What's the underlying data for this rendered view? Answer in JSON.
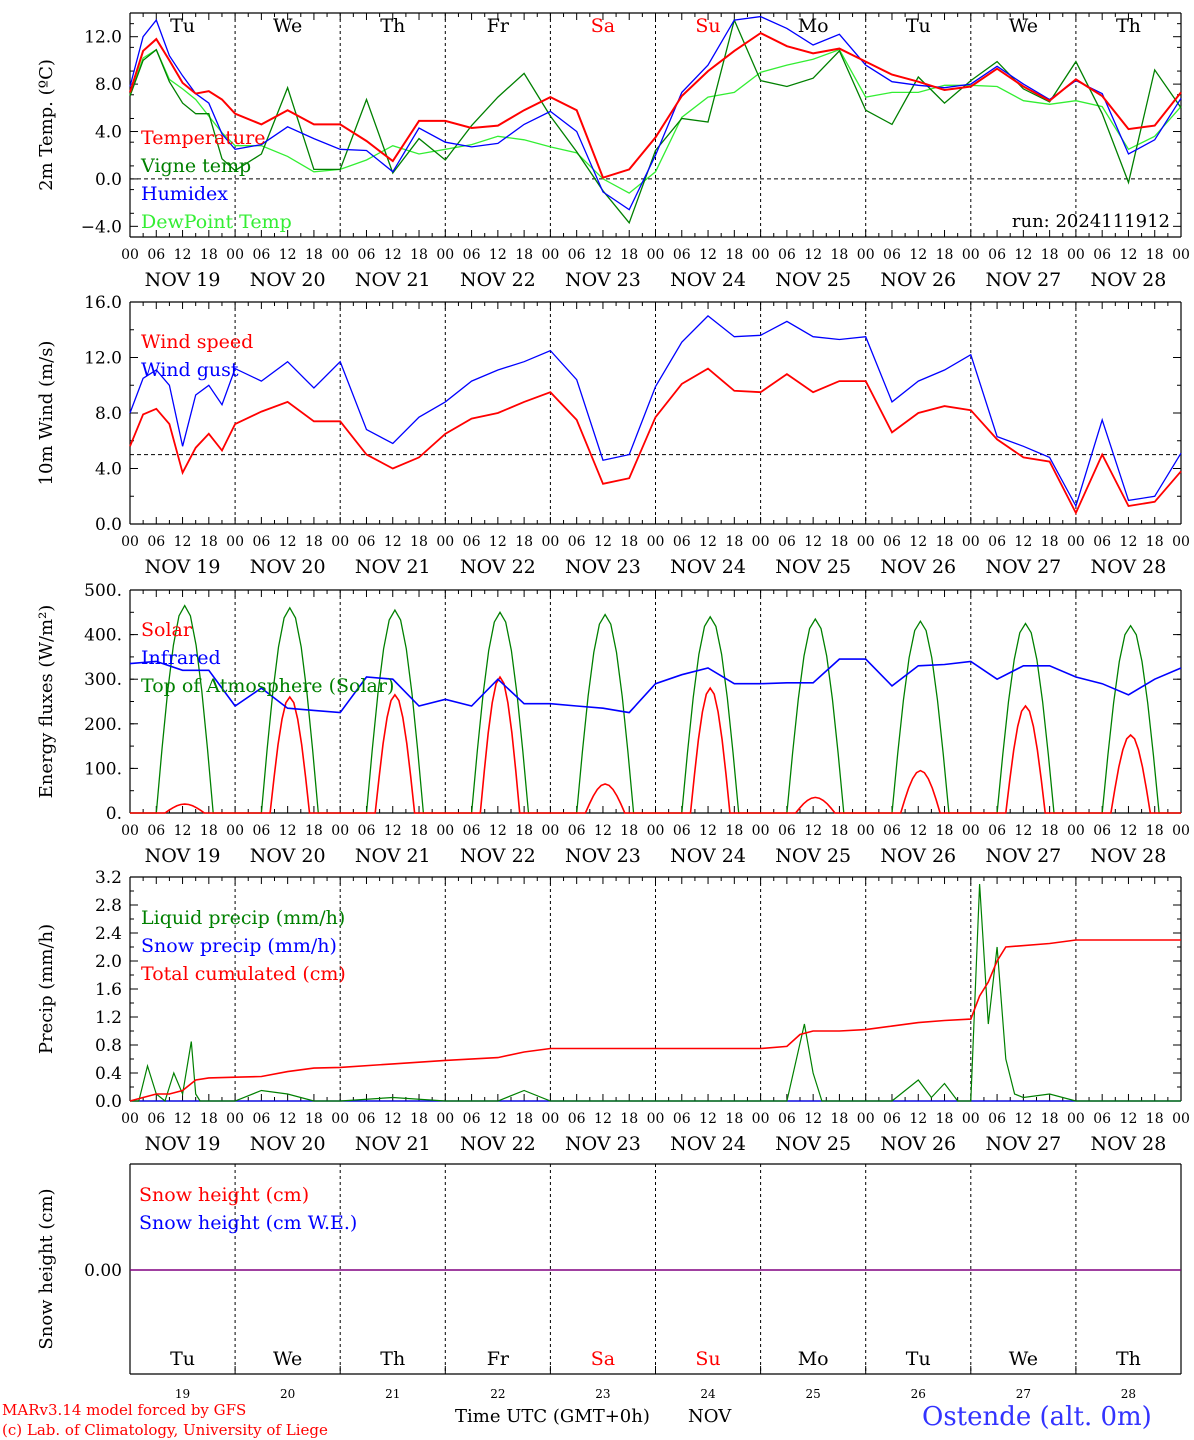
{
  "run_label": "run: 2024111912",
  "days_top": [
    "Tu",
    "We",
    "Th",
    "Fr",
    "Sa",
    "Su",
    "Mo",
    "Tu",
    "We",
    "Th"
  ],
  "days_bottom": [
    "Tu",
    "We",
    "Th",
    "Fr",
    "Sa",
    "Su",
    "Mo",
    "Tu",
    "We",
    "Th"
  ],
  "weekend_color": "#ff0000",
  "dates": [
    "NOV 19",
    "NOV 20",
    "NOV 21",
    "NOV 22",
    "NOV 23",
    "NOV 24",
    "NOV 25",
    "NOV 26",
    "NOV 27",
    "NOV 28"
  ],
  "day_numbers": [
    "19",
    "20",
    "21",
    "22",
    "23",
    "24",
    "25",
    "26",
    "27",
    "28"
  ],
  "hour_ticks": [
    "00",
    "06",
    "12",
    "18"
  ],
  "final_hour": "00",
  "xlabel": "Time UTC (GMT+0h)",
  "month": "NOV",
  "footer": {
    "model": "MARv3.14 model forced by GFS",
    "credit": "(c) Lab. of Climatology, University of Liege",
    "station": "Ostende (alt. 0m)"
  },
  "chart_data": [
    {
      "type": "line",
      "ylabel": "2m Temp. (ºC)",
      "yticks": [
        "12.0",
        "8.0",
        "4.0",
        "0.0",
        "−4.0"
      ],
      "ylim": [
        -4.9,
        14.0
      ],
      "reference_line": 0,
      "x_unit": "hours since NOV 19 00 UTC",
      "series": [
        {
          "name": "Temperature",
          "color": "#ff0000",
          "x": [
            0,
            3,
            6,
            9,
            12,
            15,
            18,
            21,
            24,
            30,
            36,
            42,
            48,
            54,
            60,
            66,
            72,
            78,
            84,
            90,
            96,
            102,
            108,
            114,
            120,
            126,
            132,
            138,
            144,
            150,
            156,
            162,
            168,
            174,
            180,
            186,
            192,
            198,
            204,
            210,
            216,
            222,
            228,
            234,
            240
          ],
          "y": [
            7.3,
            10.8,
            11.8,
            10.0,
            8.1,
            7.2,
            7.4,
            6.7,
            5.5,
            4.6,
            5.8,
            4.6,
            4.6,
            3.2,
            1.5,
            4.9,
            4.9,
            4.3,
            4.5,
            5.8,
            6.9,
            5.8,
            0.1,
            0.8,
            3.5,
            7.0,
            9.1,
            10.8,
            12.3,
            11.2,
            10.6,
            11.0,
            9.9,
            8.8,
            8.2,
            7.5,
            7.8,
            9.3,
            7.8,
            6.6,
            8.4,
            7.0,
            4.2,
            4.5,
            7.3
          ]
        },
        {
          "name": "Vigne temp",
          "color": "#008000",
          "x": [
            0,
            3,
            6,
            9,
            12,
            15,
            18,
            21,
            24,
            30,
            36,
            42,
            48,
            54,
            60,
            66,
            72,
            78,
            84,
            90,
            96,
            102,
            108,
            114,
            120,
            126,
            132,
            138,
            144,
            150,
            156,
            162,
            168,
            174,
            180,
            186,
            192,
            198,
            204,
            210,
            216,
            222,
            228,
            234,
            240
          ],
          "y": [
            7.0,
            10.0,
            10.9,
            8.2,
            6.4,
            5.5,
            5.5,
            1.7,
            0.7,
            2.1,
            7.7,
            0.8,
            0.8,
            6.7,
            0.5,
            3.4,
            1.6,
            4.5,
            6.9,
            8.9,
            5.3,
            2.3,
            -1.0,
            -3.7,
            2.4,
            5.1,
            4.8,
            13.4,
            8.3,
            7.8,
            8.5,
            10.8,
            5.8,
            4.6,
            8.6,
            6.4,
            8.3,
            9.9,
            7.6,
            6.5,
            9.9,
            5.5,
            -0.3,
            9.2,
            6.0
          ]
        },
        {
          "name": "Humidex",
          "color": "#0000ff",
          "x": [
            0,
            3,
            6,
            9,
            12,
            15,
            18,
            21,
            24,
            30,
            36,
            42,
            48,
            54,
            60,
            66,
            72,
            78,
            84,
            90,
            96,
            102,
            108,
            114,
            120,
            126,
            132,
            138,
            144,
            150,
            156,
            162,
            168,
            174,
            180,
            186,
            192,
            198,
            204,
            210,
            216,
            222,
            228,
            234,
            240
          ],
          "y": [
            7.8,
            12.0,
            13.4,
            10.4,
            8.7,
            7.2,
            6.4,
            3.8,
            2.5,
            2.9,
            4.4,
            3.4,
            2.5,
            2.4,
            0.6,
            4.3,
            3.1,
            2.7,
            3.0,
            4.6,
            5.7,
            4.0,
            -1.1,
            -2.6,
            2.0,
            7.3,
            9.6,
            13.4,
            13.7,
            12.7,
            11.3,
            12.2,
            9.6,
            8.2,
            7.9,
            7.7,
            8.0,
            9.5,
            8.0,
            6.7,
            8.3,
            7.2,
            2.1,
            3.3,
            6.8
          ]
        },
        {
          "name": "DewPoint Temp",
          "color": "#33ee33",
          "x": [
            0,
            3,
            6,
            9,
            12,
            15,
            18,
            21,
            24,
            30,
            36,
            42,
            48,
            54,
            60,
            66,
            72,
            78,
            84,
            90,
            96,
            102,
            108,
            114,
            120,
            126,
            132,
            138,
            144,
            150,
            156,
            162,
            168,
            174,
            180,
            186,
            192,
            198,
            204,
            210,
            216,
            222,
            228,
            234,
            240
          ],
          "y": [
            7.1,
            10.2,
            10.9,
            8.4,
            7.6,
            6.7,
            5.3,
            3.9,
            2.8,
            2.8,
            1.9,
            0.6,
            0.8,
            1.6,
            2.8,
            2.1,
            2.5,
            2.9,
            3.6,
            3.3,
            2.7,
            2.2,
            0.0,
            -1.2,
            0.6,
            5.2,
            6.9,
            7.3,
            9.0,
            9.6,
            10.1,
            10.9,
            6.9,
            7.3,
            7.3,
            7.9,
            7.9,
            7.8,
            6.6,
            6.3,
            6.6,
            6.1,
            2.5,
            3.6,
            6.1
          ]
        }
      ]
    },
    {
      "type": "line",
      "ylabel": "10m Wind (m/s)",
      "yticks": [
        "16.0",
        "12.0",
        "8.0",
        "4.0",
        "0.0"
      ],
      "ylim": [
        0.0,
        16.0
      ],
      "reference_line": 5.0,
      "x_unit": "hours since NOV 19 00 UTC",
      "series": [
        {
          "name": "Wind speed",
          "color": "#ff0000",
          "x": [
            0,
            3,
            6,
            9,
            12,
            15,
            18,
            21,
            24,
            30,
            36,
            42,
            48,
            54,
            60,
            66,
            72,
            78,
            84,
            90,
            96,
            102,
            108,
            114,
            120,
            126,
            132,
            138,
            144,
            150,
            156,
            162,
            168,
            174,
            180,
            186,
            192,
            198,
            204,
            210,
            216,
            222,
            228,
            234,
            240
          ],
          "y": [
            5.6,
            7.9,
            8.3,
            7.2,
            3.7,
            5.5,
            6.5,
            5.3,
            7.2,
            8.1,
            8.8,
            7.4,
            7.4,
            5.0,
            4.0,
            4.8,
            6.5,
            7.6,
            8.0,
            8.8,
            9.5,
            7.5,
            2.9,
            3.3,
            7.7,
            10.1,
            11.2,
            9.6,
            9.5,
            10.8,
            9.5,
            10.3,
            10.3,
            6.6,
            8.0,
            8.5,
            8.2,
            6.1,
            4.8,
            4.5,
            0.8,
            5.0,
            1.3,
            1.6,
            3.8
          ]
        },
        {
          "name": "Wind gust",
          "color": "#0000ff",
          "x": [
            0,
            3,
            6,
            9,
            12,
            15,
            18,
            21,
            24,
            30,
            36,
            42,
            48,
            54,
            60,
            66,
            72,
            78,
            84,
            90,
            96,
            102,
            108,
            114,
            120,
            126,
            132,
            138,
            144,
            150,
            156,
            162,
            168,
            174,
            180,
            186,
            192,
            198,
            204,
            210,
            216,
            222,
            228,
            234,
            240
          ],
          "y": [
            8.0,
            10.5,
            11.1,
            10.0,
            5.6,
            9.3,
            10.0,
            8.6,
            11.2,
            10.3,
            11.7,
            9.8,
            11.7,
            6.8,
            5.8,
            7.7,
            8.8,
            10.3,
            11.1,
            11.7,
            12.5,
            10.4,
            4.6,
            5.0,
            9.9,
            13.1,
            15.0,
            13.5,
            13.6,
            14.6,
            13.5,
            13.3,
            13.5,
            8.8,
            10.3,
            11.1,
            12.2,
            6.3,
            5.6,
            4.8,
            1.3,
            7.5,
            1.7,
            2.0,
            5.1
          ]
        }
      ]
    },
    {
      "type": "line",
      "ylabel": "Energy fluxes (W/m²)",
      "yticks": [
        "500.",
        "400.",
        "300.",
        "200.",
        "100.",
        "0."
      ],
      "ylim": [
        0,
        500
      ],
      "x_unit": "hours since NOV 19 00 UTC",
      "series": [
        {
          "name": "Solar",
          "color": "#ff0000",
          "peaks": [
            {
              "center": 12.5,
              "width": 9,
              "value": 20
            },
            {
              "center": 36.5,
              "width": 9,
              "value": 260
            },
            {
              "center": 60.5,
              "width": 9,
              "value": 265
            },
            {
              "center": 84.5,
              "width": 9,
              "value": 305
            },
            {
              "center": 108.5,
              "width": 9,
              "value": 65
            },
            {
              "center": 132.5,
              "width": 9,
              "value": 280
            },
            {
              "center": 156.5,
              "width": 9,
              "value": 35
            },
            {
              "center": 180.5,
              "width": 9,
              "value": 95
            },
            {
              "center": 204.5,
              "width": 9,
              "value": 240
            },
            {
              "center": 228.5,
              "width": 9,
              "value": 175
            }
          ]
        },
        {
          "name": "Infrared",
          "color": "#0000ff",
          "x": [
            0,
            6,
            12,
            18,
            24,
            30,
            36,
            42,
            48,
            54,
            60,
            66,
            72,
            78,
            84,
            90,
            96,
            102,
            108,
            114,
            120,
            126,
            132,
            138,
            144,
            150,
            156,
            162,
            168,
            174,
            180,
            186,
            192,
            198,
            204,
            210,
            216,
            222,
            228,
            234,
            240
          ],
          "y": [
            335,
            340,
            320,
            320,
            240,
            280,
            235,
            230,
            225,
            305,
            300,
            240,
            255,
            240,
            300,
            245,
            245,
            240,
            235,
            225,
            290,
            310,
            325,
            290,
            290,
            292,
            292,
            345,
            345,
            285,
            330,
            333,
            340,
            300,
            330,
            330,
            305,
            290,
            265,
            300,
            325
          ]
        },
        {
          "name": "Top of Atmosphere (Solar)",
          "color": "#008000",
          "peaks": [
            {
              "center": 12.5,
              "width": 13,
              "value": 465
            },
            {
              "center": 36.5,
              "width": 13,
              "value": 460
            },
            {
              "center": 60.5,
              "width": 13,
              "value": 455
            },
            {
              "center": 84.5,
              "width": 13,
              "value": 450
            },
            {
              "center": 108.5,
              "width": 13,
              "value": 445
            },
            {
              "center": 132.5,
              "width": 13,
              "value": 440
            },
            {
              "center": 156.5,
              "width": 13,
              "value": 435
            },
            {
              "center": 180.5,
              "width": 13,
              "value": 430
            },
            {
              "center": 204.5,
              "width": 13,
              "value": 425
            },
            {
              "center": 228.5,
              "width": 13,
              "value": 420
            }
          ]
        }
      ]
    },
    {
      "type": "line",
      "ylabel": "Precip (mm/h)",
      "yticks": [
        "3.2",
        "2.8",
        "2.4",
        "2.0",
        "1.6",
        "1.2",
        "0.8",
        "0.4",
        "0.0"
      ],
      "ylim": [
        0.0,
        3.2
      ],
      "x_unit": "hours since NOV 19 00 UTC",
      "series": [
        {
          "name": "Liquid precip (mm/h)",
          "color": "#008000",
          "x": [
            0,
            2,
            4,
            6,
            8,
            10,
            12,
            14,
            15,
            16,
            18,
            24,
            30,
            36,
            42,
            48,
            60,
            72,
            84,
            90,
            96,
            102,
            150,
            154,
            156,
            158,
            162,
            174,
            180,
            183,
            186,
            189,
            192,
            194,
            196,
            198,
            200,
            202,
            204,
            210,
            216,
            222,
            240
          ],
          "y": [
            0,
            0,
            0.5,
            0.1,
            0,
            0.4,
            0.1,
            0.85,
            0.1,
            0,
            0,
            0,
            0.15,
            0.1,
            0,
            0,
            0.05,
            0,
            0,
            0.15,
            0,
            0,
            0,
            1.1,
            0.4,
            0,
            0,
            0,
            0.3,
            0.05,
            0.25,
            0,
            0,
            3.1,
            1.1,
            2.2,
            0.6,
            0.1,
            0.05,
            0.1,
            0,
            0,
            0
          ]
        },
        {
          "name": "Snow precip (mm/h)",
          "color": "#0000ff",
          "x": [
            0,
            240
          ],
          "y": [
            0,
            0
          ]
        },
        {
          "name": "Total cumulated (cm)",
          "color": "#ff0000",
          "x": [
            0,
            3,
            6,
            9,
            12,
            15,
            18,
            24,
            30,
            36,
            42,
            48,
            60,
            72,
            84,
            90,
            96,
            102,
            108,
            120,
            144,
            150,
            153,
            156,
            162,
            168,
            174,
            180,
            186,
            192,
            194,
            196,
            198,
            200,
            210,
            216,
            222,
            240
          ],
          "y": [
            0,
            0.05,
            0.1,
            0.1,
            0.15,
            0.3,
            0.33,
            0.34,
            0.35,
            0.42,
            0.47,
            0.48,
            0.53,
            0.58,
            0.62,
            0.7,
            0.75,
            0.75,
            0.75,
            0.75,
            0.75,
            0.78,
            0.95,
            1.0,
            1.0,
            1.02,
            1.07,
            1.12,
            1.15,
            1.17,
            1.5,
            1.7,
            2.0,
            2.2,
            2.25,
            2.3,
            2.3,
            2.3
          ]
        }
      ]
    },
    {
      "type": "line",
      "ylabel": "Snow height (cm)",
      "ytick_label": "0.00",
      "x_unit": "hours since NOV 19 00 UTC",
      "series": [
        {
          "name": "Snow height (cm)",
          "color": "#ff0000",
          "x": [
            0,
            240
          ],
          "y": [
            0,
            0
          ]
        },
        {
          "name": "Snow height (cm W.E.)",
          "color": "#0000ff",
          "x": [
            0,
            240
          ],
          "y": [
            0,
            0
          ]
        }
      ]
    }
  ]
}
